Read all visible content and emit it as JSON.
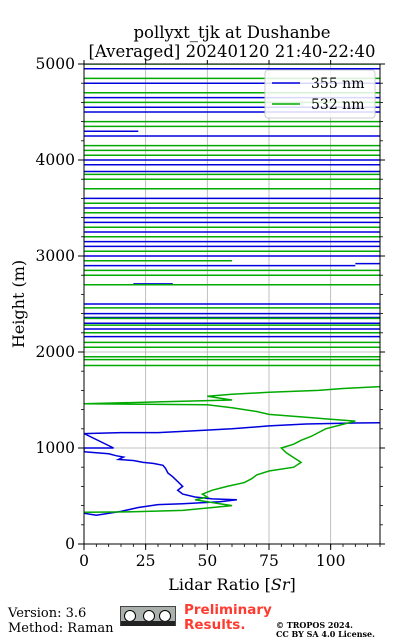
{
  "chart_data": {
    "type": "line",
    "title_line1": "pollyxt_tjk at Dushanbe",
    "title_line2": "[Averaged] 20240120 21:40-22:40",
    "xlabel": "Lidar Ratio [",
    "xlabel_unit": "Sr",
    "xlabel_end": "]",
    "ylabel": "Height (m)",
    "xlim": [
      0,
      120
    ],
    "ylim": [
      0,
      5000
    ],
    "x_ticks": [
      0,
      25,
      50,
      75,
      100
    ],
    "y_ticks": [
      0,
      1000,
      2000,
      3000,
      4000,
      5000
    ],
    "grid": true,
    "legend_position": "top-right",
    "series": [
      {
        "name": "355 nm",
        "color": "#0000dd",
        "points": [
          [
            0,
            320
          ],
          [
            5,
            300
          ],
          [
            15,
            340
          ],
          [
            22,
            380
          ],
          [
            30,
            410
          ],
          [
            40,
            420
          ],
          [
            55,
            440
          ],
          [
            62,
            460
          ],
          [
            52,
            470
          ],
          [
            45,
            490
          ],
          [
            40,
            520
          ],
          [
            38,
            560
          ],
          [
            40,
            600
          ],
          [
            38,
            650
          ],
          [
            36,
            700
          ],
          [
            34,
            740
          ],
          [
            33,
            790
          ],
          [
            32,
            820
          ],
          [
            28,
            840
          ],
          [
            24,
            850
          ],
          [
            20,
            870
          ],
          [
            14,
            880
          ],
          [
            16,
            905
          ],
          [
            13,
            920
          ],
          [
            10,
            940
          ],
          [
            0,
            960
          ],
          [
            0,
            1000
          ],
          [
            12,
            1000
          ],
          [
            0,
            1150
          ],
          [
            15,
            1160
          ],
          [
            30,
            1160
          ],
          [
            45,
            1180
          ],
          [
            60,
            1200
          ],
          [
            75,
            1230
          ],
          [
            90,
            1250
          ],
          [
            110,
            1260
          ],
          [
            120,
            1262
          ]
        ],
        "segments": [
          [
            0,
            2160,
            120
          ],
          [
            0,
            2200,
            120
          ],
          [
            0,
            2240,
            120
          ],
          [
            0,
            2300,
            120
          ],
          [
            0,
            2360,
            120
          ],
          [
            0,
            2400,
            120
          ],
          [
            0,
            2500,
            120
          ],
          [
            0,
            2700,
            20
          ],
          [
            20,
            2710,
            36
          ],
          [
            0,
            2900,
            110
          ],
          [
            110,
            2920,
            120
          ],
          [
            0,
            3000,
            120
          ],
          [
            0,
            3100,
            120
          ],
          [
            0,
            3150,
            120
          ],
          [
            0,
            3250,
            120
          ],
          [
            0,
            3350,
            120
          ],
          [
            0,
            3400,
            120
          ],
          [
            0,
            3500,
            120
          ],
          [
            0,
            3600,
            120
          ],
          [
            0,
            3880,
            120
          ],
          [
            0,
            3950,
            120
          ],
          [
            0,
            4000,
            120
          ],
          [
            0,
            4250,
            120
          ],
          [
            0,
            4300,
            22
          ],
          [
            0,
            4500,
            120
          ],
          [
            0,
            4550,
            120
          ],
          [
            0,
            4650,
            120
          ],
          [
            0,
            4800,
            120
          ],
          [
            0,
            4950,
            120
          ]
        ]
      },
      {
        "name": "532 nm",
        "color": "#00aa00",
        "points": [
          [
            0,
            330
          ],
          [
            20,
            335
          ],
          [
            40,
            350
          ],
          [
            60,
            400
          ],
          [
            55,
            420
          ],
          [
            50,
            440
          ],
          [
            45,
            460
          ],
          [
            50,
            490
          ],
          [
            48,
            520
          ],
          [
            52,
            560
          ],
          [
            58,
            600
          ],
          [
            65,
            640
          ],
          [
            68,
            680
          ],
          [
            70,
            720
          ],
          [
            75,
            760
          ],
          [
            85,
            800
          ],
          [
            88,
            850
          ],
          [
            85,
            900
          ],
          [
            82,
            950
          ],
          [
            80,
            1000
          ],
          [
            85,
            1040
          ],
          [
            88,
            1080
          ],
          [
            92,
            1120
          ],
          [
            98,
            1200
          ],
          [
            110,
            1280
          ],
          [
            100,
            1300
          ],
          [
            90,
            1320
          ],
          [
            75,
            1350
          ],
          [
            70,
            1380
          ],
          [
            60,
            1420
          ],
          [
            50,
            1450
          ],
          [
            0,
            1460
          ],
          [
            30,
            1480
          ],
          [
            60,
            1500
          ],
          [
            55,
            1520
          ],
          [
            50,
            1540
          ],
          [
            60,
            1560
          ],
          [
            75,
            1580
          ],
          [
            95,
            1600
          ],
          [
            105,
            1620
          ],
          [
            120,
            1640
          ]
        ],
        "segments": [
          [
            0,
            1920,
            120
          ],
          [
            0,
            1860,
            120
          ],
          [
            0,
            1950,
            120
          ],
          [
            0,
            2050,
            120
          ],
          [
            0,
            2100,
            120
          ],
          [
            0,
            2200,
            120
          ],
          [
            0,
            2280,
            120
          ],
          [
            0,
            2350,
            120
          ],
          [
            0,
            2460,
            120
          ],
          [
            0,
            2700,
            120
          ],
          [
            0,
            2800,
            120
          ],
          [
            0,
            2850,
            120
          ],
          [
            0,
            2950,
            60
          ],
          [
            0,
            3050,
            120
          ],
          [
            0,
            3200,
            120
          ],
          [
            0,
            3300,
            120
          ],
          [
            0,
            3450,
            120
          ],
          [
            0,
            3550,
            120
          ],
          [
            0,
            3700,
            120
          ],
          [
            0,
            3800,
            120
          ],
          [
            0,
            3850,
            120
          ],
          [
            0,
            4050,
            120
          ],
          [
            0,
            4100,
            120
          ],
          [
            0,
            4150,
            120
          ],
          [
            0,
            4350,
            120
          ],
          [
            0,
            4400,
            120
          ],
          [
            0,
            4600,
            120
          ],
          [
            0,
            4700,
            120
          ],
          [
            0,
            4850,
            120
          ],
          [
            0,
            5000,
            120
          ]
        ]
      }
    ]
  },
  "footer": {
    "version": "Version: 3.6",
    "method": "Method: Raman",
    "preliminary_line1": "Preliminary",
    "preliminary_line2": "Results.",
    "copyright_line1": "© TROPOS 2024.",
    "copyright_line2": "CC BY SA 4.0 License."
  }
}
